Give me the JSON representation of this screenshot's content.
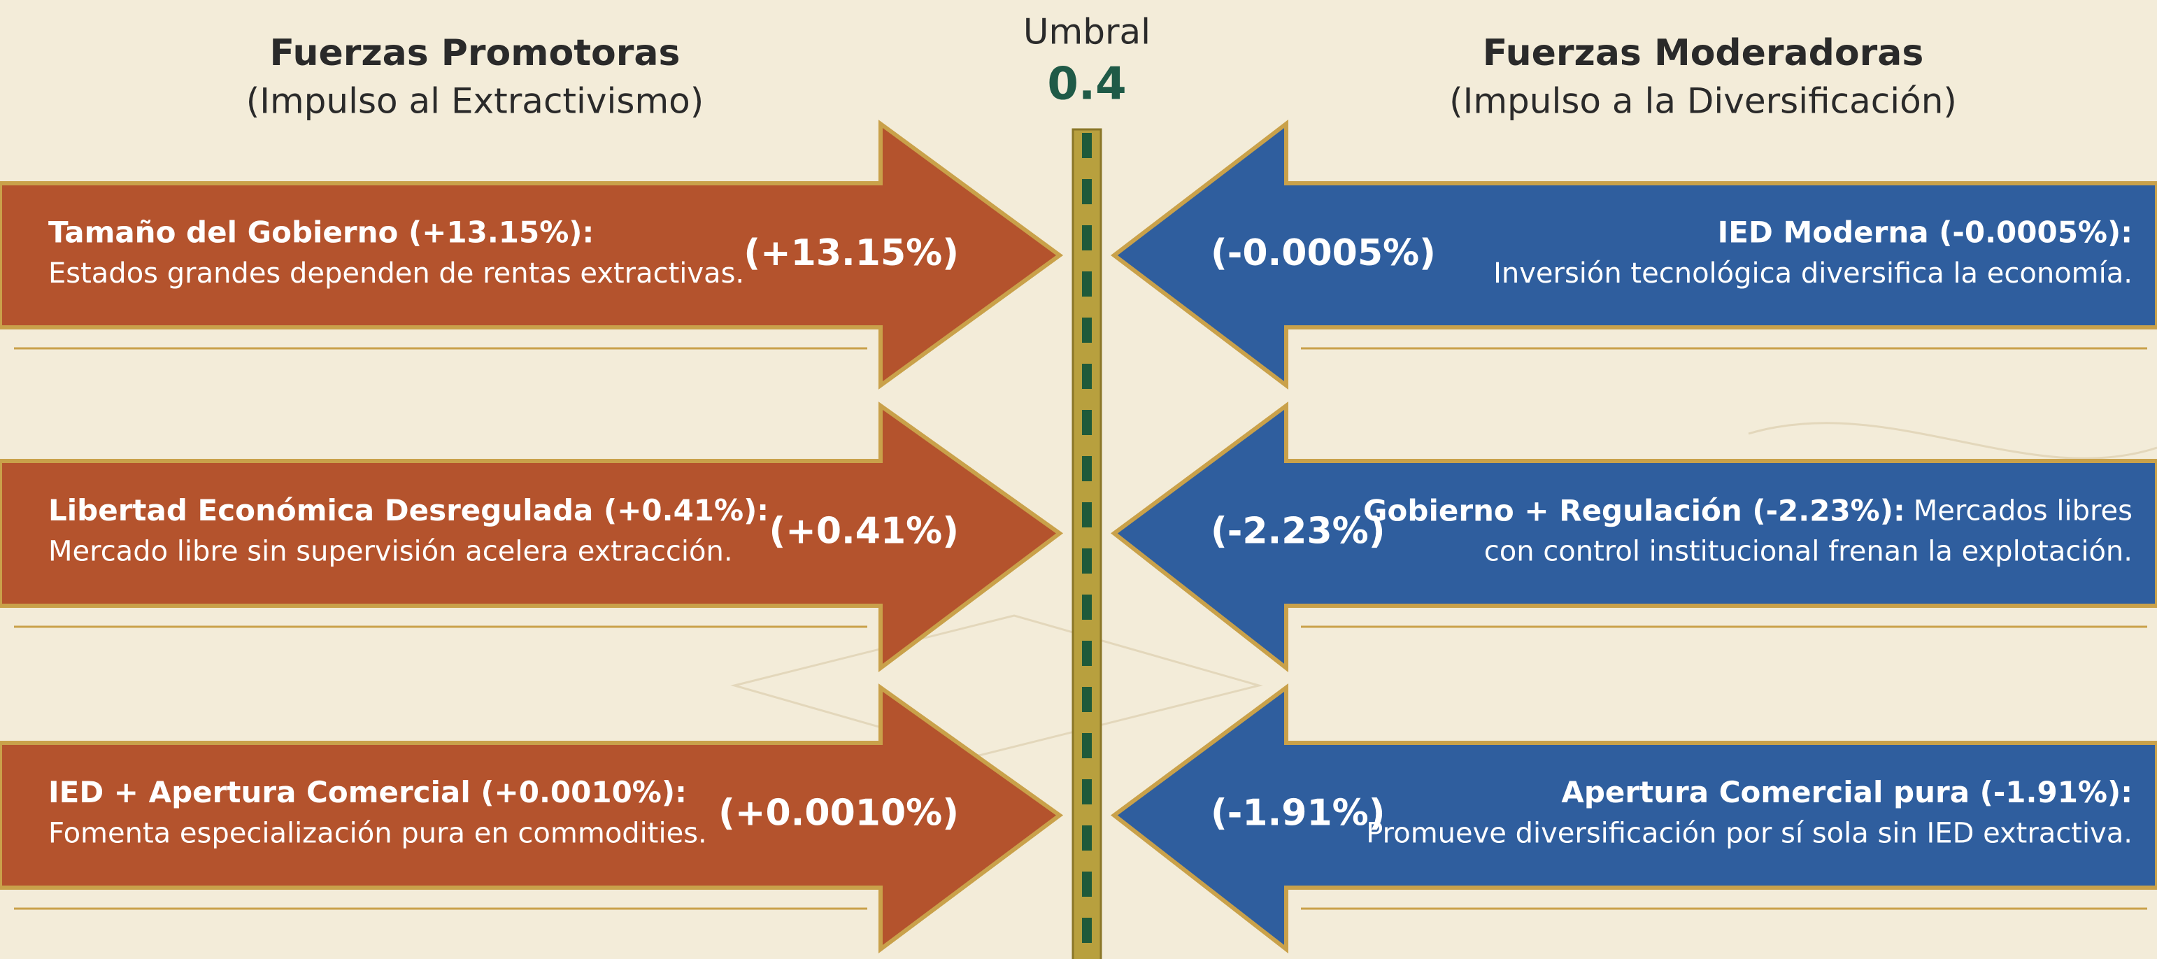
{
  "header": {
    "left": {
      "title": "Fuerzas Promotoras",
      "subtitle": "(Impulso al Extractivismo)"
    },
    "center": {
      "title": "Umbral",
      "value": "0.4"
    },
    "right": {
      "title": "Fuerzas Moderadoras",
      "subtitle": "(Impulso a la Diversificación)"
    }
  },
  "left_forces": [
    {
      "label": "Tamaño del Gobierno (+13.15%):",
      "description": [
        "Estados grandes dependen de rentas extractivas."
      ],
      "value": "(+13.15%)"
    },
    {
      "label": "Libertad Económica Desregulada (+0.41%):",
      "description": [
        "Mercado libre sin supervisión acelera extracción."
      ],
      "value": "(+0.41%)"
    },
    {
      "label": "IED + Apertura Comercial (+0.0010%):",
      "description": [
        "Fomenta especialización pura en commodities."
      ],
      "value": "(+0.0010%)"
    }
  ],
  "right_forces": [
    {
      "label": "IED Moderna (-0.0005%):",
      "description": [
        "Inversión tecnológica diversifica la economía."
      ],
      "value": "(-0.0005%)"
    },
    {
      "label": "Gobierno + Regulación (-2.23%):",
      "description": [
        "Mercados libres",
        "con control institucional frenan la explotación."
      ],
      "value": "(-2.23%)"
    },
    {
      "label": "Apertura Comercial pura (-1.91%):",
      "description": [
        "Promueve diversificación por sí sola sin IED extractiva."
      ],
      "value": "(-1.91%)"
    }
  ]
}
